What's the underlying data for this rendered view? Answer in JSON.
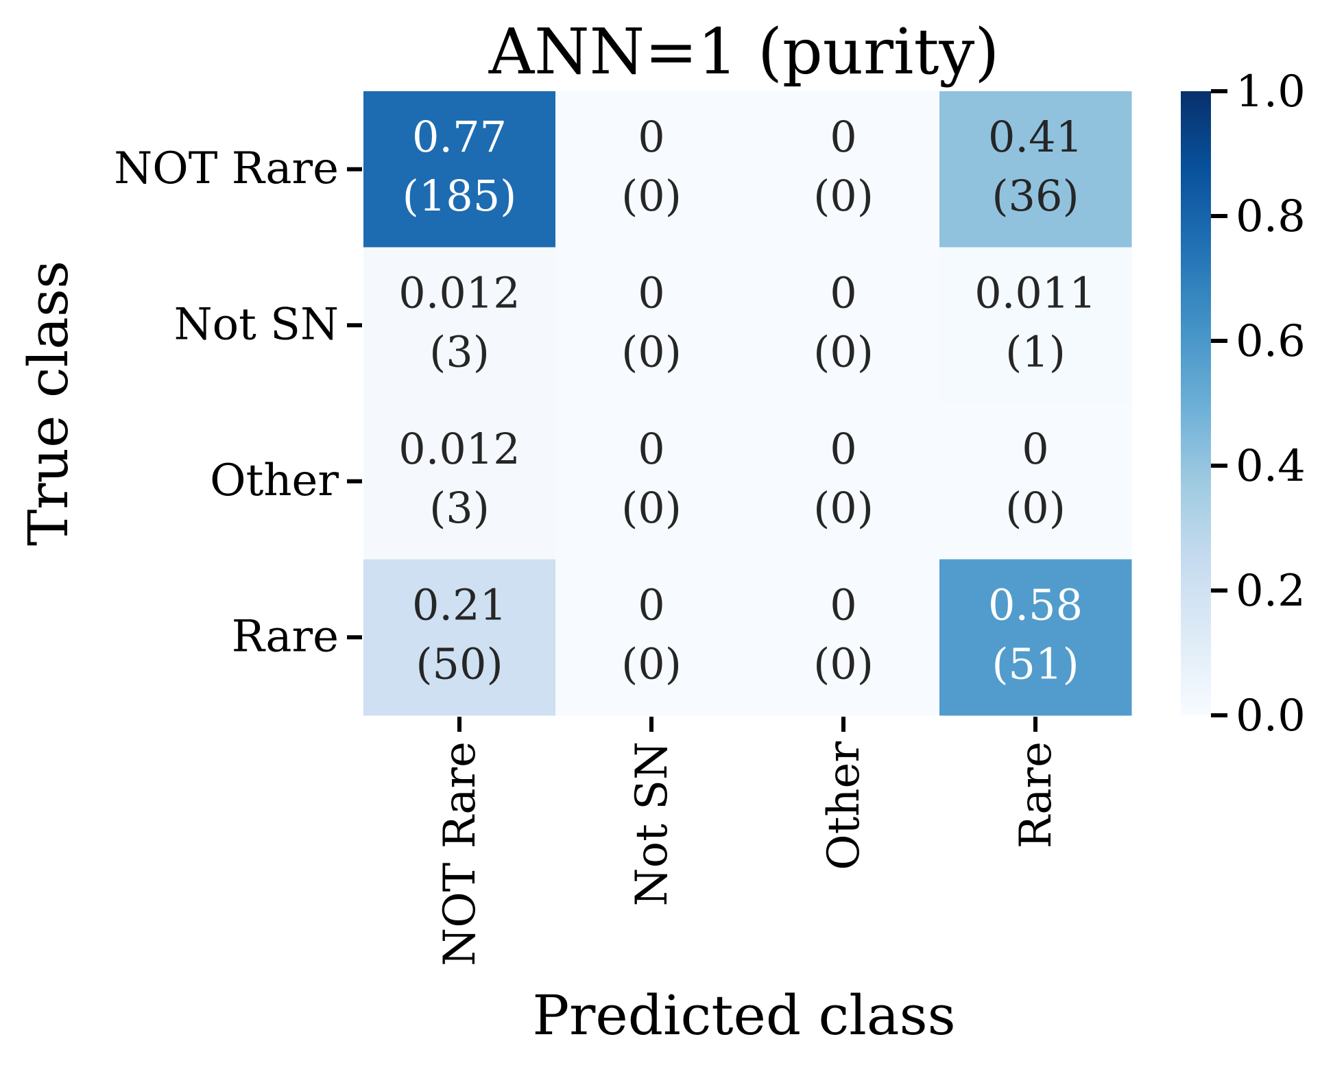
{
  "chart_data": {
    "type": "heatmap",
    "title": "ANN=1 (purity)",
    "xlabel": "Predicted class",
    "ylabel": "True class",
    "x_categories": [
      "NOT Rare",
      "Not SN",
      "Other",
      "Rare"
    ],
    "y_categories": [
      "NOT Rare",
      "Not SN",
      "Other",
      "Rare"
    ],
    "cells": [
      [
        {
          "value": 0.77,
          "label": "0.77",
          "count": "(185)"
        },
        {
          "value": 0,
          "label": "0",
          "count": "(0)"
        },
        {
          "value": 0,
          "label": "0",
          "count": "(0)"
        },
        {
          "value": 0.41,
          "label": "0.41",
          "count": "(36)"
        }
      ],
      [
        {
          "value": 0.012,
          "label": "0.012",
          "count": "(3)"
        },
        {
          "value": 0,
          "label": "0",
          "count": "(0)"
        },
        {
          "value": 0,
          "label": "0",
          "count": "(0)"
        },
        {
          "value": 0.011,
          "label": "0.011",
          "count": "(1)"
        }
      ],
      [
        {
          "value": 0.012,
          "label": "0.012",
          "count": "(3)"
        },
        {
          "value": 0,
          "label": "0",
          "count": "(0)"
        },
        {
          "value": 0,
          "label": "0",
          "count": "(0)"
        },
        {
          "value": 0,
          "label": "0",
          "count": "(0)"
        }
      ],
      [
        {
          "value": 0.21,
          "label": "0.21",
          "count": "(50)"
        },
        {
          "value": 0,
          "label": "0",
          "count": "(0)"
        },
        {
          "value": 0,
          "label": "0",
          "count": "(0)"
        },
        {
          "value": 0.58,
          "label": "0.58",
          "count": "(51)"
        }
      ]
    ],
    "colorbar": {
      "range": [
        0.0,
        1.0
      ],
      "ticks": [
        "0.0",
        "0.2",
        "0.4",
        "0.6",
        "0.8",
        "1.0"
      ]
    },
    "colormap": "Blues"
  }
}
